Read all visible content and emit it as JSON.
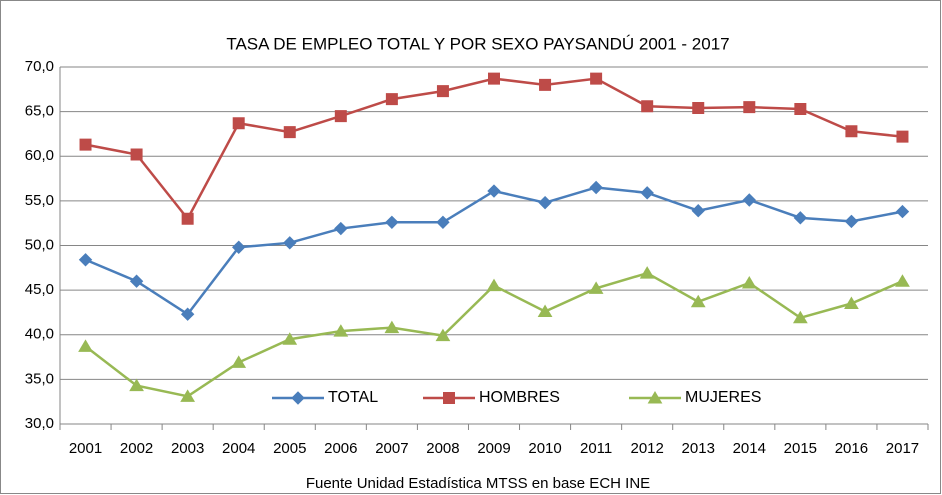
{
  "chart_data": {
    "type": "line",
    "title": "TASA DE EMPLEO TOTAL Y POR SEXO PAYSANDÚ 2001 - 2017",
    "x_label": "Fuente Unidad Estadística MTSS en base ECH INE",
    "categories": [
      "2001",
      "2002",
      "2003",
      "2004",
      "2005",
      "2006",
      "2007",
      "2008",
      "2009",
      "2010",
      "2011",
      "2012",
      "2013",
      "2014",
      "2015",
      "2016",
      "2017"
    ],
    "series": [
      {
        "name": "TOTAL",
        "color": "#4a7ebb",
        "marker": "diamond",
        "values": [
          48.4,
          46.0,
          42.3,
          49.8,
          50.3,
          51.9,
          52.6,
          52.6,
          56.1,
          54.8,
          56.5,
          55.9,
          53.9,
          55.1,
          53.1,
          52.7,
          53.8
        ]
      },
      {
        "name": "HOMBRES",
        "color": "#be4b48",
        "marker": "square",
        "values": [
          61.3,
          60.2,
          53.0,
          63.7,
          62.7,
          64.5,
          66.4,
          67.3,
          68.7,
          68.0,
          68.7,
          65.6,
          65.4,
          65.5,
          65.3,
          62.8,
          62.2
        ]
      },
      {
        "name": "MUJERES",
        "color": "#98b954",
        "marker": "triangle",
        "values": [
          38.7,
          34.3,
          33.1,
          36.9,
          39.5,
          40.4,
          40.8,
          39.9,
          45.5,
          42.6,
          45.2,
          46.9,
          43.7,
          45.8,
          41.9,
          43.5,
          46.0
        ]
      }
    ],
    "ylim": [
      30,
      70
    ],
    "yticks": [
      {
        "value": 30,
        "label": "30,0"
      },
      {
        "value": 35,
        "label": "35,0"
      },
      {
        "value": 40,
        "label": "40,0"
      },
      {
        "value": 45,
        "label": "45,0"
      },
      {
        "value": 50,
        "label": "50,0"
      },
      {
        "value": 55,
        "label": "55,0"
      },
      {
        "value": 60,
        "label": "60,0"
      },
      {
        "value": 65,
        "label": "65,0"
      },
      {
        "value": 70,
        "label": "70,0"
      }
    ],
    "grid": true,
    "legend": "bottom"
  }
}
